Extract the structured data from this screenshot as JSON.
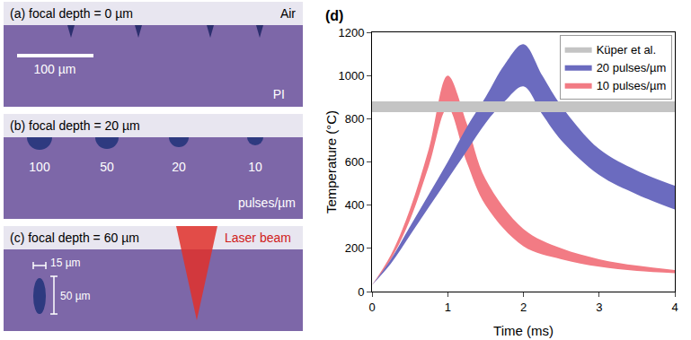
{
  "image_panels": [
    {
      "letter": "(a)",
      "title": "focal depth = 0 µm",
      "air_label": "Air",
      "scale_bar": "100 µm",
      "material": "PI"
    },
    {
      "letter": "(b)",
      "title": "focal depth = 20 µm",
      "crater_labels": [
        "100",
        "50",
        "20",
        "10"
      ],
      "unit": "pulses/µm"
    },
    {
      "letter": "(c)",
      "title": "focal depth = 60 µm",
      "beam_label": "Laser beam",
      "width_label": "15 µm",
      "depth_label": "50 µm"
    }
  ],
  "chart_data": {
    "type": "band",
    "letter": "(d)",
    "xlabel": "Time (ms)",
    "ylabel": "Temperature (°C)",
    "xlim": [
      0,
      4
    ],
    "ylim": [
      0,
      1200
    ],
    "xticks": [
      0,
      1,
      2,
      3,
      4
    ],
    "yticks": [
      0,
      200,
      400,
      600,
      800,
      1000,
      1200
    ],
    "grid": false,
    "legend": "top-right",
    "series": [
      {
        "name": "10 pulses/µm",
        "color": "#f27b84",
        "x": [
          0,
          0.25,
          0.5,
          0.75,
          1,
          1.25,
          1.5,
          2,
          2.5,
          3,
          3.5,
          4
        ],
        "upper": [
          30,
          170,
          380,
          660,
          1000,
          780,
          520,
          290,
          200,
          150,
          120,
          100
        ],
        "lower": [
          30,
          150,
          330,
          580,
          850,
          600,
          400,
          210,
          150,
          115,
          95,
          85
        ]
      },
      {
        "name": "20 pulses/µm",
        "color": "#6b6bbf",
        "x": [
          0,
          0.25,
          0.5,
          0.75,
          1,
          1.25,
          1.5,
          1.75,
          2,
          2.25,
          2.5,
          3,
          3.5,
          4
        ],
        "upper": [
          30,
          150,
          300,
          450,
          600,
          760,
          900,
          1050,
          1145,
          1000,
          860,
          660,
          560,
          490
        ],
        "lower": [
          30,
          130,
          260,
          390,
          520,
          650,
          780,
          880,
          950,
          820,
          700,
          540,
          450,
          380
        ]
      },
      {
        "name": "Küper et al.",
        "color": "#c4c4c4",
        "x": [
          0,
          4
        ],
        "upper": [
          880,
          880
        ],
        "lower": [
          830,
          830
        ]
      }
    ]
  }
}
